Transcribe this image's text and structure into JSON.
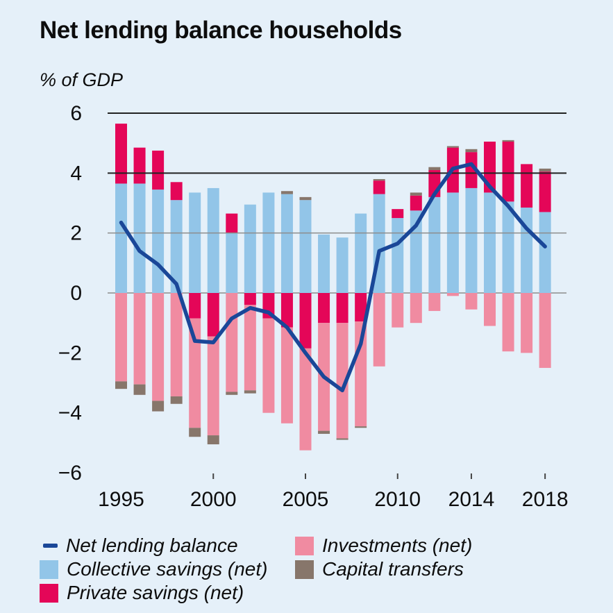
{
  "title": "Net lending balance households",
  "y_axis_label": "% of GDP",
  "legend": {
    "net_lending": "Net lending balance",
    "collective": "Collective savings (net)",
    "private": "Private savings (net)",
    "investments": "Investments (net)",
    "capital": "Capital transfers"
  },
  "colors": {
    "background": "#e5f0f9",
    "collective": "#92c5e8",
    "private": "#e40658",
    "investments": "#f08ba1",
    "capital": "#87766b",
    "line": "#1a4798",
    "grid_dark": "#222222",
    "grid_light": "#8c8c8c",
    "text": "#0d0d0d"
  },
  "chart_data": {
    "type": "bar",
    "subtype": "stacked-bars-with-line-overlay",
    "title": "Net lending balance households",
    "ylabel": "% of GDP",
    "ylim": [
      -6,
      6
    ],
    "grid": "horizontal at 6, 4, 2, 0",
    "legend_position": "bottom, two columns",
    "categories": [
      1995,
      1996,
      1997,
      1998,
      1999,
      2000,
      2001,
      2002,
      2003,
      2004,
      2005,
      2006,
      2007,
      2008,
      2009,
      2010,
      2011,
      2012,
      2013,
      2014,
      2015,
      2016,
      2017,
      2018
    ],
    "series": [
      {
        "key": "collective",
        "name": "Collective savings (net)",
        "type": "bar",
        "values": [
          3.65,
          3.65,
          3.45,
          3.1,
          3.35,
          3.5,
          2.0,
          2.95,
          3.35,
          3.3,
          3.1,
          1.95,
          1.85,
          2.65,
          3.3,
          2.5,
          2.75,
          3.2,
          3.35,
          3.5,
          3.35,
          3.05,
          2.85,
          2.7
        ]
      },
      {
        "key": "private",
        "name": "Private savings (net)",
        "type": "bar",
        "values": [
          2.0,
          1.2,
          1.3,
          0.6,
          -0.85,
          -1.45,
          0.65,
          -0.4,
          -0.85,
          -1.15,
          -1.85,
          -1.0,
          -1.0,
          -0.95,
          0.45,
          0.3,
          0.5,
          0.9,
          1.5,
          1.2,
          1.7,
          2.0,
          1.45,
          1.35
        ]
      },
      {
        "key": "investments",
        "name": "Investments (net)",
        "type": "bar",
        "values": [
          -2.95,
          -3.05,
          -3.6,
          -3.45,
          -3.65,
          -3.3,
          -3.3,
          -2.85,
          -3.15,
          -3.2,
          -3.4,
          -3.6,
          -3.85,
          -3.5,
          -2.45,
          -1.15,
          -1.0,
          -0.6,
          -0.1,
          -0.55,
          -1.1,
          -1.95,
          -2.0,
          -2.5
        ]
      },
      {
        "key": "capital",
        "name": "Capital transfers",
        "type": "bar",
        "values": [
          -0.25,
          -0.35,
          -0.35,
          -0.25,
          -0.3,
          -0.3,
          -0.1,
          -0.1,
          0,
          0.1,
          0.1,
          -0.1,
          -0.05,
          -0.05,
          0.05,
          0,
          0.1,
          0.1,
          0.05,
          0.1,
          0,
          0.05,
          0,
          0.1
        ]
      },
      {
        "key": "line",
        "name": "Net lending balance",
        "type": "line",
        "values": [
          2.35,
          1.4,
          0.95,
          0.3,
          -1.6,
          -1.65,
          -0.85,
          -0.5,
          -0.65,
          -1.15,
          -2.0,
          -2.8,
          -3.25,
          -1.7,
          1.4,
          1.65,
          2.25,
          3.3,
          4.15,
          4.3,
          3.55,
          2.9,
          2.15,
          1.55
        ]
      }
    ],
    "y_ticks": [
      {
        "v": 6,
        "t": "6"
      },
      {
        "v": 4,
        "t": "4"
      },
      {
        "v": 2,
        "t": "2"
      },
      {
        "v": 0,
        "t": "0"
      },
      {
        "v": -2,
        "t": "−2"
      },
      {
        "v": -4,
        "t": "−4"
      },
      {
        "v": -6,
        "t": "−6"
      }
    ],
    "gridlines": [
      {
        "v": 6,
        "s": "dark"
      },
      {
        "v": 4,
        "s": "dark"
      },
      {
        "v": 2,
        "s": "light"
      },
      {
        "v": 0,
        "s": "light",
        "under": true
      }
    ],
    "x_ticks": [
      {
        "i": 0,
        "t": "1995",
        "tick": false
      },
      {
        "i": 5,
        "t": "2000",
        "tick": true
      },
      {
        "i": 10,
        "t": "2005",
        "tick": true
      },
      {
        "i": 15,
        "t": "2010",
        "tick": true
      },
      {
        "i": 19,
        "t": "2014",
        "tick": true
      },
      {
        "i": 23,
        "t": "2018",
        "tick": true
      }
    ]
  }
}
